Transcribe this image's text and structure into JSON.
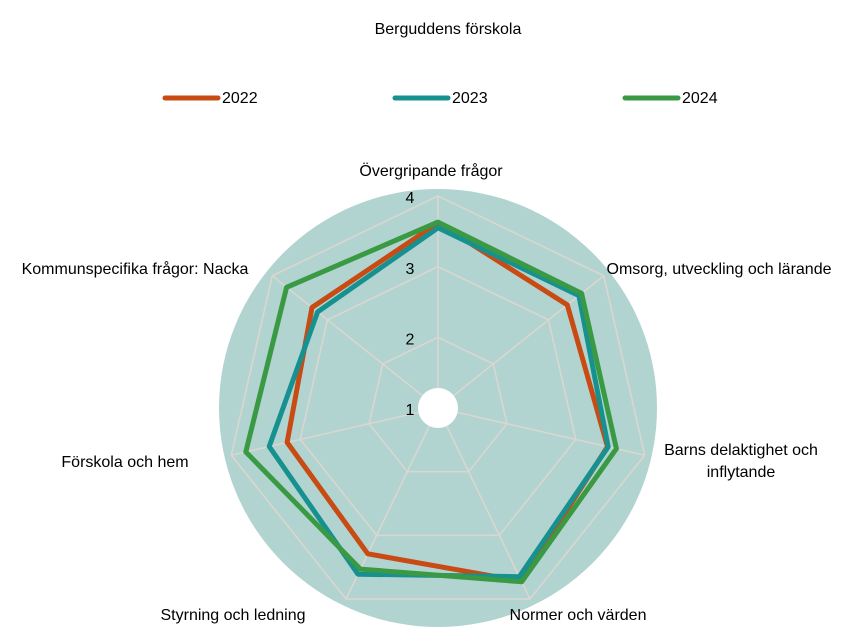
{
  "chart_data": {
    "type": "radar",
    "title": "Berguddens förskola",
    "categories": [
      "Övergripande frågor",
      "Omsorg, utveckling och lärande",
      "Barns delaktighet och inflytande",
      "Normer och värden",
      "Styrning och ledning",
      "Förskola och hem",
      "Kommunspecifika frågor: Nacka"
    ],
    "series": [
      {
        "name": "2022",
        "color": "#c84b14",
        "values": [
          3.62,
          3.34,
          3.46,
          3.72,
          3.29,
          3.19,
          3.28
        ]
      },
      {
        "name": "2023",
        "color": "#17918f",
        "values": [
          3.55,
          3.55,
          3.47,
          3.65,
          3.61,
          3.45,
          3.18
        ]
      },
      {
        "name": "2024",
        "color": "#3a9a44",
        "values": [
          3.63,
          3.6,
          3.59,
          3.73,
          3.53,
          3.79,
          3.74
        ]
      }
    ],
    "ylim": [
      1,
      4
    ],
    "yticks": [
      1,
      2,
      3,
      4
    ],
    "grid": true,
    "legend": "top"
  }
}
